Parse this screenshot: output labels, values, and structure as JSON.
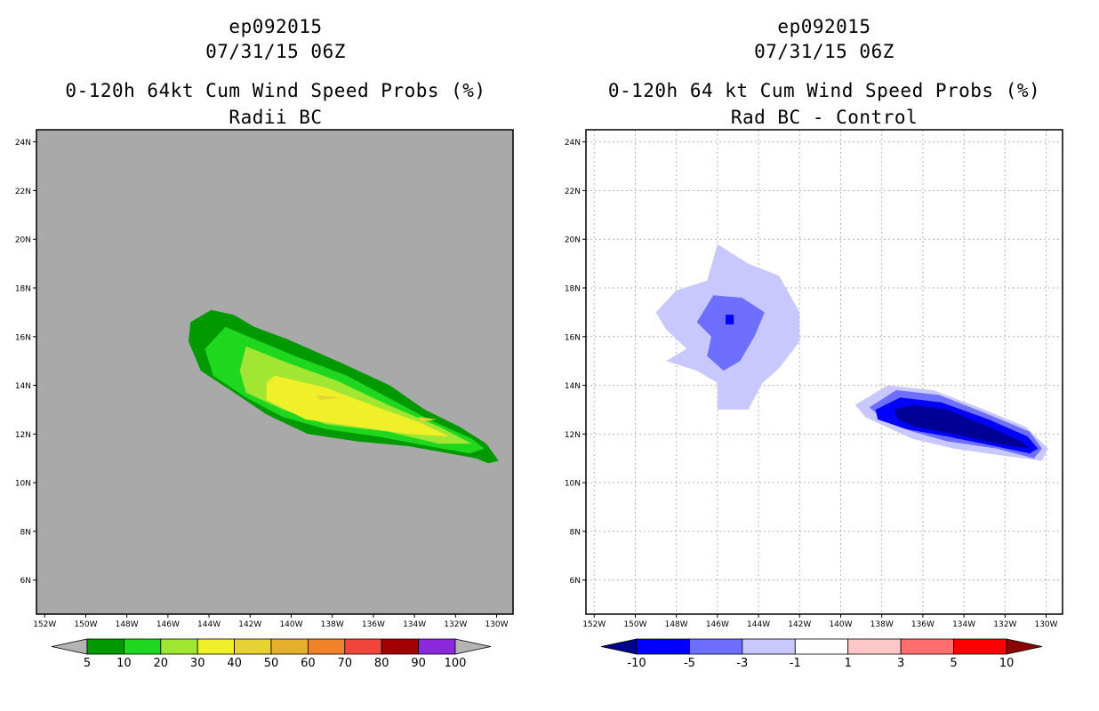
{
  "left": {
    "title1": "ep092015",
    "title2": "07/31/15 06Z",
    "title3": "0-120h 64kt Cum Wind Speed Probs (%)",
    "title4": "Radii BC",
    "background": "#a9a9a9",
    "colorbar": {
      "labels": [
        "5",
        "10",
        "20",
        "30",
        "40",
        "50",
        "60",
        "70",
        "80",
        "90",
        "100"
      ],
      "colors": [
        "#009900",
        "#1ed71e",
        "#a0e632",
        "#f0f028",
        "#e6d232",
        "#e6af2d",
        "#f08228",
        "#f0463c",
        "#a00000",
        "#8c28dc"
      ],
      "end_colors": [
        "#b4b4b4",
        "#b4b4b4"
      ]
    }
  },
  "right": {
    "title1": "ep092015",
    "title2": "07/31/15 06Z",
    "title3": "0-120h 64 kt Cum Wind Speed Probs (%)",
    "title4": "Rad BC - Control",
    "background": "#ffffff",
    "colorbar": {
      "labels": [
        "-10",
        "-5",
        "-3",
        "-1",
        "1",
        "3",
        "5",
        "10"
      ],
      "colors": [
        "#0000ff",
        "#6e6eff",
        "#c8c8ff",
        "#ffffff",
        "#ffc8c8",
        "#ff6e6e",
        "#ff0000"
      ],
      "end_colors": [
        "#00008c",
        "#8c0000"
      ]
    }
  },
  "axes": {
    "lat_labels": [
      "24N",
      "22N",
      "20N",
      "18N",
      "16N",
      "14N",
      "12N",
      "10N",
      "8N",
      "6N"
    ],
    "lat_values": [
      24,
      22,
      20,
      18,
      16,
      14,
      12,
      10,
      8,
      6
    ],
    "lon_labels": [
      "152W",
      "150W",
      "148W",
      "146W",
      "144W",
      "142W",
      "140W",
      "138W",
      "136W",
      "134W",
      "132W",
      "130W"
    ],
    "lon_values": [
      152,
      150,
      148,
      146,
      144,
      142,
      140,
      138,
      136,
      134,
      132,
      130
    ],
    "lon_range": [
      152.4,
      129.2
    ],
    "lat_range": [
      4.6,
      24.5
    ]
  },
  "chart_data": [
    {
      "type": "heatmap",
      "title": "0-120h 64kt Cum Wind Speed Probs (%) — Radii BC",
      "xlabel": "Longitude",
      "ylabel": "Latitude",
      "xlim": [
        152.4,
        129.2
      ],
      "ylim": [
        4.6,
        24.5
      ],
      "contours": [
        {
          "level": 5,
          "color": "#009900",
          "polygon": [
            [
              143.9,
              17.1
            ],
            [
              142.8,
              16.9
            ],
            [
              141.8,
              16.4
            ],
            [
              140.2,
              15.9
            ],
            [
              137.5,
              14.9
            ],
            [
              135.2,
              14.0
            ],
            [
              133.5,
              13.0
            ],
            [
              131.8,
              12.3
            ],
            [
              130.5,
              11.6
            ],
            [
              129.9,
              10.9
            ],
            [
              130.4,
              10.8
            ],
            [
              131.0,
              11.0
            ],
            [
              132.3,
              11.2
            ],
            [
              134.3,
              11.5
            ],
            [
              136.8,
              11.7
            ],
            [
              139.2,
              12.0
            ],
            [
              141.2,
              12.8
            ],
            [
              142.6,
              13.6
            ],
            [
              144.4,
              14.6
            ],
            [
              145.0,
              15.8
            ],
            [
              144.9,
              16.6
            ]
          ]
        },
        {
          "level": 10,
          "color": "#1ed71e",
          "polygon": [
            [
              143.2,
              16.4
            ],
            [
              141.8,
              15.9
            ],
            [
              139.8,
              15.2
            ],
            [
              137.3,
              14.4
            ],
            [
              135.3,
              13.5
            ],
            [
              133.3,
              12.6
            ],
            [
              131.2,
              11.8
            ],
            [
              130.6,
              11.4
            ],
            [
              131.3,
              11.2
            ],
            [
              133.3,
              11.5
            ],
            [
              135.8,
              11.9
            ],
            [
              138.3,
              12.2
            ],
            [
              140.4,
              12.7
            ],
            [
              142.2,
              13.5
            ],
            [
              143.8,
              14.4
            ],
            [
              144.2,
              15.5
            ]
          ]
        },
        {
          "level": 20,
          "color": "#a0e632",
          "polygon": [
            [
              142.2,
              15.6
            ],
            [
              140.4,
              15.0
            ],
            [
              137.8,
              14.2
            ],
            [
              135.3,
              13.2
            ],
            [
              132.8,
              12.3
            ],
            [
              131.2,
              11.6
            ],
            [
              132.8,
              11.6
            ],
            [
              135.3,
              12.1
            ],
            [
              138.3,
              12.4
            ],
            [
              140.4,
              13.0
            ],
            [
              142.2,
              13.7
            ],
            [
              142.5,
              14.6
            ]
          ]
        },
        {
          "level": 30,
          "color": "#f0f028",
          "polygon": [
            [
              140.8,
              14.4
            ],
            [
              138.3,
              13.9
            ],
            [
              135.8,
              13.1
            ],
            [
              133.8,
              12.5
            ],
            [
              132.3,
              11.9
            ],
            [
              134.3,
              12.0
            ],
            [
              136.8,
              12.3
            ],
            [
              139.3,
              12.6
            ],
            [
              141.2,
              13.4
            ],
            [
              141.2,
              14.1
            ]
          ]
        },
        {
          "level": 40,
          "color": "#e6d232",
          "polygon": [
            [
              138.8,
              13.6
            ],
            [
              137.6,
              13.5
            ],
            [
              138.6,
              13.4
            ]
          ]
        },
        {
          "level": 40,
          "color": "#e6d232",
          "polygon": [
            [
              133.8,
              12.7
            ],
            [
              132.9,
              12.6
            ],
            [
              133.7,
              12.5
            ]
          ]
        }
      ]
    },
    {
      "type": "heatmap",
      "title": "0-120h 64 kt Cum Wind Speed Probs (%) — Rad BC - Control",
      "xlabel": "Longitude",
      "ylabel": "Latitude",
      "xlim": [
        152.4,
        129.2
      ],
      "ylim": [
        4.6,
        24.5
      ],
      "contours": [
        {
          "level": -1,
          "color": "#c8c8ff",
          "polygon": [
            [
              146.0,
              19.8
            ],
            [
              144.5,
              19.0
            ],
            [
              143.0,
              18.5
            ],
            [
              142.0,
              17.0
            ],
            [
              142.0,
              15.8
            ],
            [
              143.0,
              14.7
            ],
            [
              143.8,
              14.1
            ],
            [
              144.5,
              13.0
            ],
            [
              146.0,
              13.0
            ],
            [
              146.0,
              14.1
            ],
            [
              147.0,
              14.6
            ],
            [
              148.5,
              15.0
            ],
            [
              147.5,
              15.5
            ],
            [
              148.5,
              16.3
            ],
            [
              149.0,
              17.0
            ],
            [
              148.0,
              17.9
            ],
            [
              146.5,
              18.3
            ]
          ]
        },
        {
          "level": -3,
          "color": "#6e6eff",
          "polygon": [
            [
              146.2,
              17.7
            ],
            [
              144.8,
              17.6
            ],
            [
              143.7,
              17.0
            ],
            [
              144.2,
              16.0
            ],
            [
              144.9,
              15.0
            ],
            [
              145.7,
              14.6
            ],
            [
              146.5,
              15.2
            ],
            [
              146.3,
              16.0
            ],
            [
              147.0,
              16.6
            ]
          ]
        },
        {
          "level": -5,
          "color": "#0000ff",
          "polygon": [
            [
              145.6,
              16.9
            ],
            [
              145.2,
              16.9
            ],
            [
              145.2,
              16.5
            ],
            [
              145.6,
              16.5
            ]
          ]
        },
        {
          "level": -1,
          "color": "#c8c8ff",
          "polygon": [
            [
              137.7,
              14.0
            ],
            [
              135.5,
              13.8
            ],
            [
              133.0,
              13.0
            ],
            [
              131.0,
              12.3
            ],
            [
              129.9,
              11.4
            ],
            [
              130.2,
              10.9
            ],
            [
              132.0,
              11.1
            ],
            [
              134.5,
              11.4
            ],
            [
              136.5,
              11.8
            ],
            [
              137.8,
              12.3
            ],
            [
              138.8,
              12.7
            ],
            [
              139.3,
              13.2
            ]
          ]
        },
        {
          "level": -3,
          "color": "#6e6eff",
          "polygon": [
            [
              137.3,
              13.8
            ],
            [
              135.2,
              13.6
            ],
            [
              132.8,
              12.8
            ],
            [
              130.8,
              12.1
            ],
            [
              130.2,
              11.4
            ],
            [
              130.6,
              11.0
            ],
            [
              132.4,
              11.4
            ],
            [
              134.8,
              11.7
            ],
            [
              136.5,
              12.1
            ],
            [
              137.8,
              12.5
            ],
            [
              138.6,
              13.1
            ]
          ]
        },
        {
          "level": -5,
          "color": "#0000ff",
          "polygon": [
            [
              137.1,
              13.5
            ],
            [
              135.1,
              13.3
            ],
            [
              132.8,
              12.6
            ],
            [
              130.9,
              11.9
            ],
            [
              130.4,
              11.4
            ],
            [
              130.8,
              11.2
            ],
            [
              132.5,
              11.5
            ],
            [
              134.8,
              11.9
            ],
            [
              136.8,
              12.2
            ],
            [
              138.2,
              12.6
            ],
            [
              138.3,
              13.0
            ]
          ]
        },
        {
          "level": -10,
          "color": "#000096",
          "polygon": [
            [
              136.5,
              13.2
            ],
            [
              134.8,
              13.0
            ],
            [
              132.8,
              12.3
            ],
            [
              131.2,
              11.7
            ],
            [
              130.8,
              11.4
            ],
            [
              132.4,
              11.6
            ],
            [
              134.5,
              12.0
            ],
            [
              136.4,
              12.3
            ],
            [
              137.2,
              12.6
            ],
            [
              137.4,
              13.0
            ]
          ]
        }
      ]
    }
  ]
}
